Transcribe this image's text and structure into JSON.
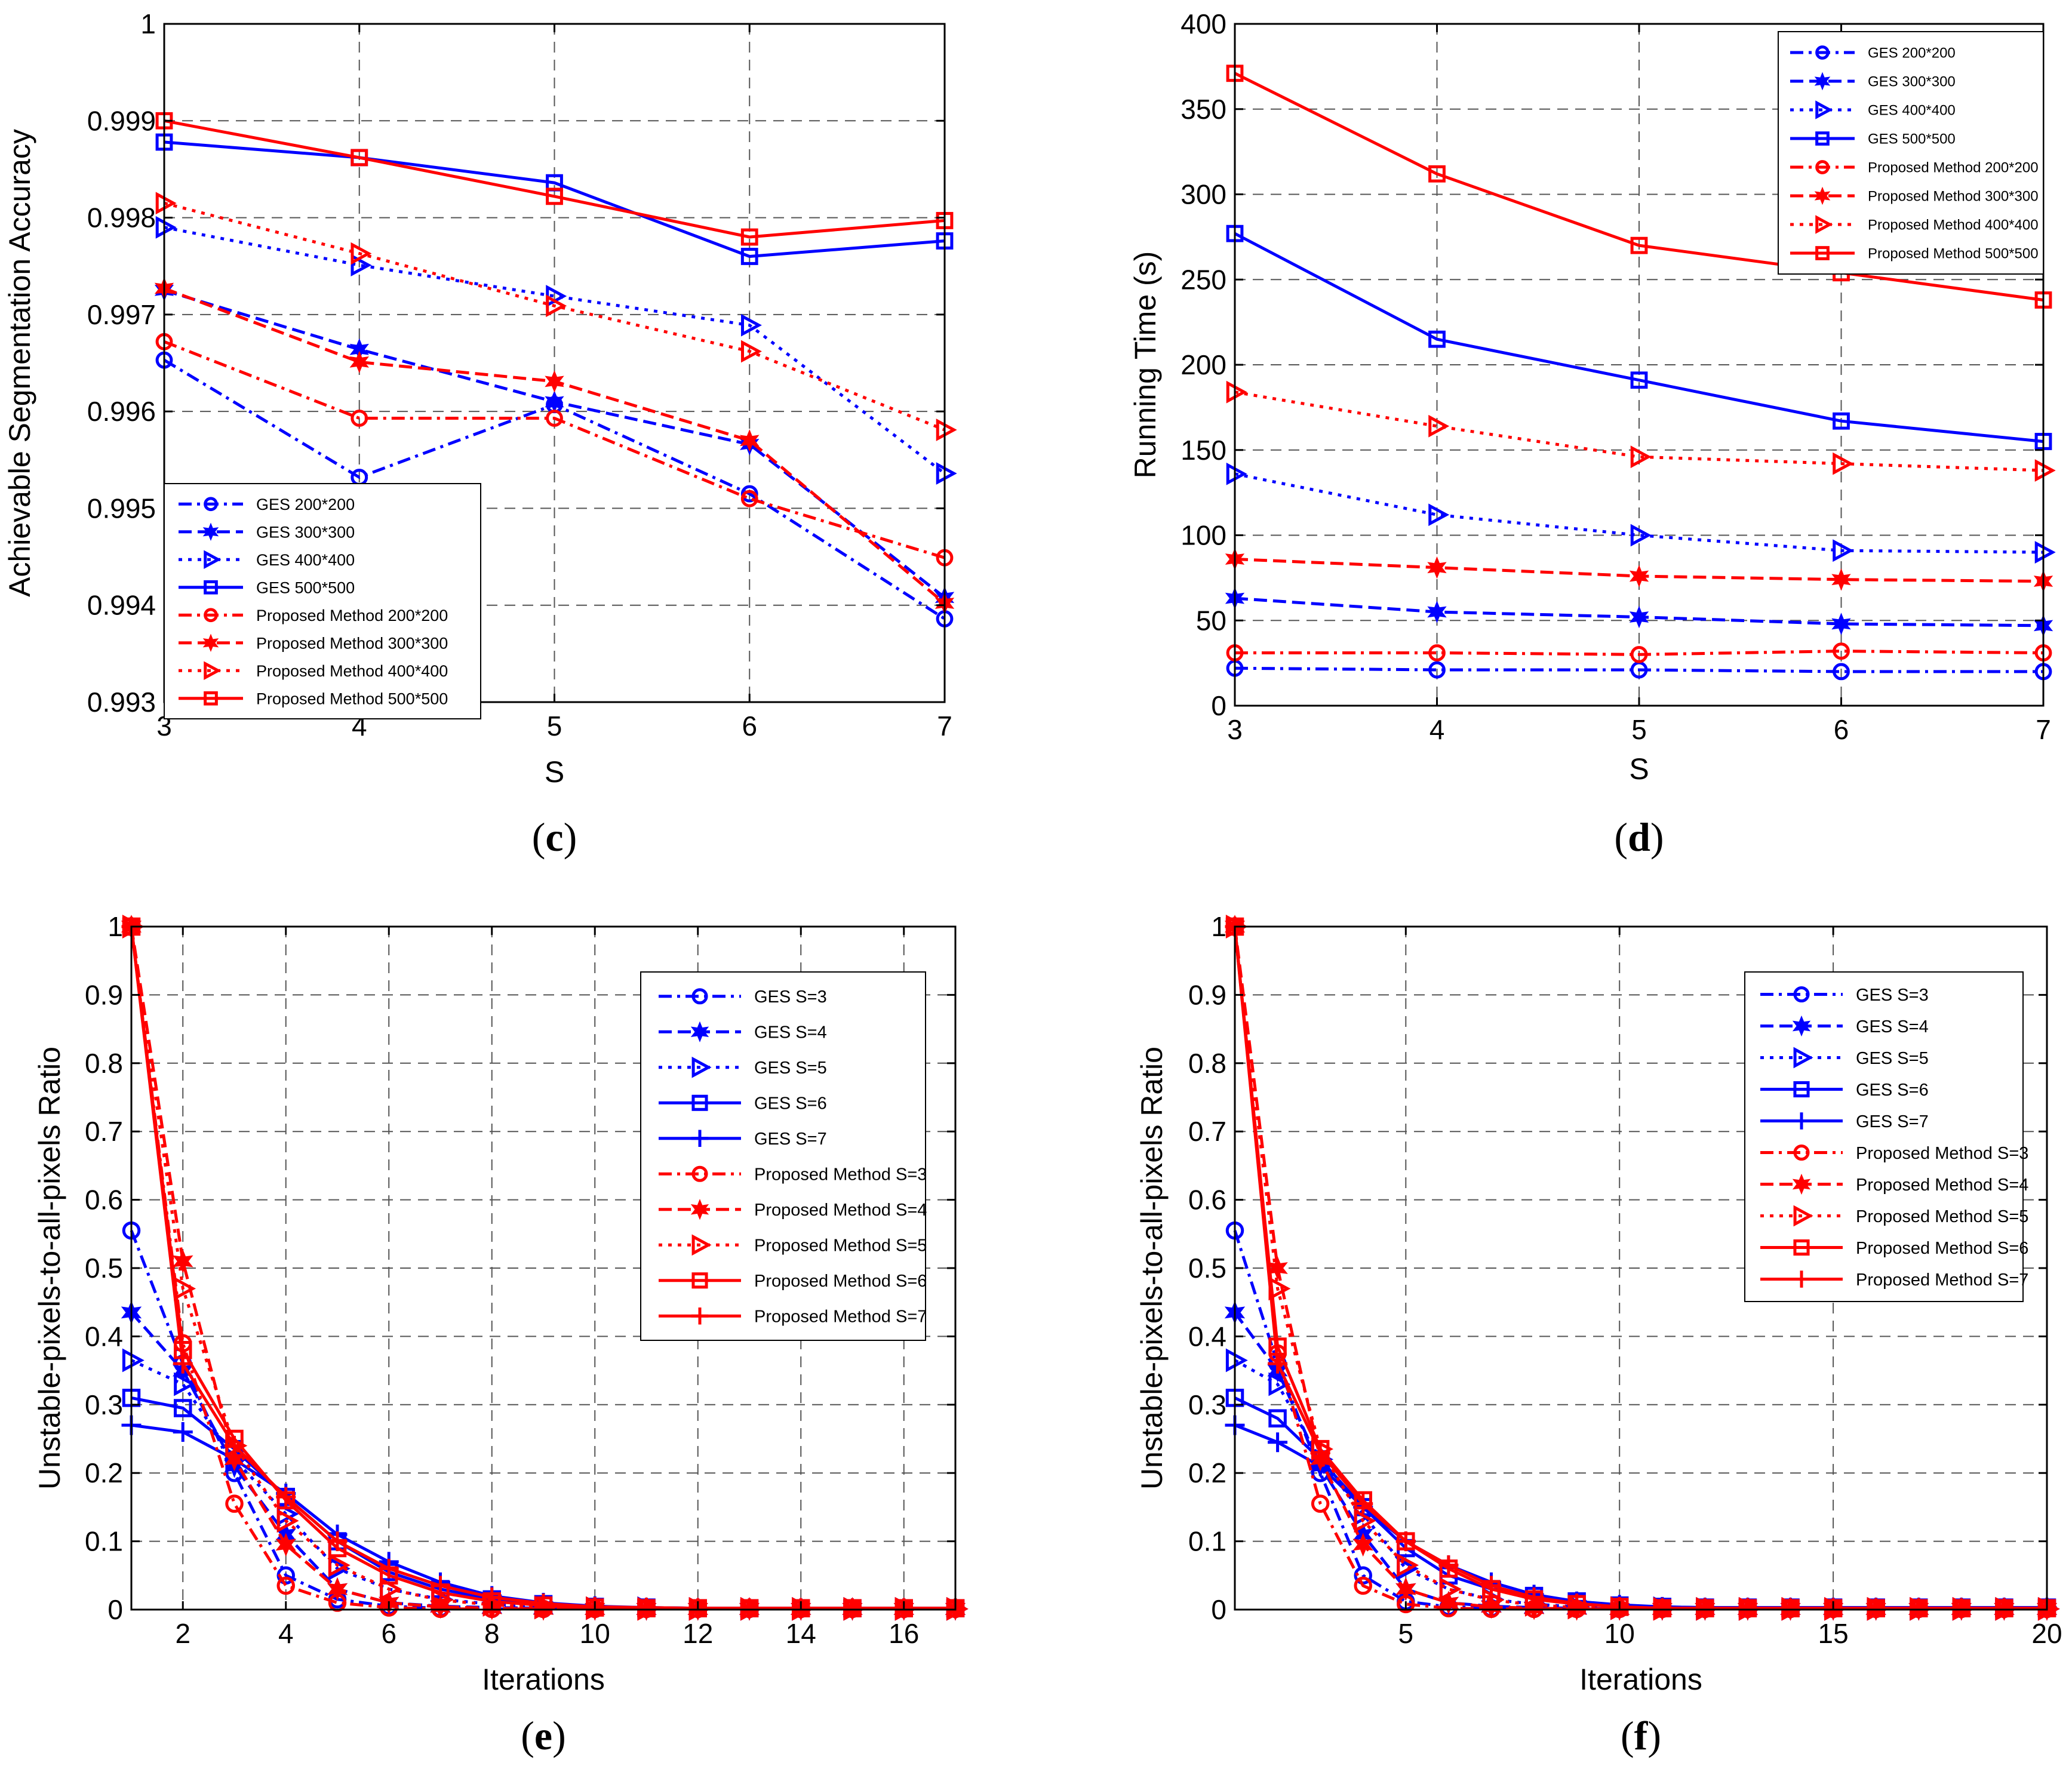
{
  "chart_data": [
    {
      "type": "line",
      "panel": "(c)",
      "panel_letter": "c",
      "xlabel": "S",
      "ylabel": "Achievable Segmentation Accuracy",
      "xlim": [
        3,
        7
      ],
      "ylim": [
        0.993,
        1
      ],
      "xticks": [
        3,
        4,
        5,
        6,
        7
      ],
      "xtick_labels": [
        "3",
        "4",
        "5",
        "6",
        "7"
      ],
      "yticks": [
        0.993,
        0.994,
        0.995,
        0.996,
        0.997,
        0.998,
        0.999,
        1
      ],
      "ytick_labels": [
        "0.993",
        "0.994",
        "0.995",
        "0.996",
        "0.997",
        "0.998",
        "0.999",
        "1"
      ],
      "grid": true,
      "legend_position": "bottom-left",
      "x": [
        3,
        4,
        5,
        6,
        7
      ],
      "series": [
        {
          "name": "GES 200*200",
          "color": "#0000ff",
          "style": "dashdot",
          "marker": "circle",
          "values": [
            0.99653,
            0.99532,
            0.99607,
            0.99515,
            0.99386
          ]
        },
        {
          "name": "GES 300*300",
          "color": "#0000ff",
          "style": "dashed",
          "marker": "star",
          "values": [
            0.99725,
            0.99664,
            0.9961,
            0.99566,
            0.99408
          ]
        },
        {
          "name": "GES 400*400",
          "color": "#0000ff",
          "style": "dotted",
          "marker": "triangle",
          "values": [
            0.9979,
            0.99751,
            0.99719,
            0.99689,
            0.99536
          ]
        },
        {
          "name": "GES 500*500",
          "color": "#0000ff",
          "style": "solid",
          "marker": "square",
          "values": [
            0.99878,
            0.99862,
            0.99836,
            0.9976,
            0.99776
          ]
        },
        {
          "name": "Proposed Method 200*200",
          "color": "#ff0000",
          "style": "dashdot",
          "marker": "circle",
          "values": [
            0.99672,
            0.99593,
            0.99593,
            0.9951,
            0.99449
          ]
        },
        {
          "name": "Proposed Method 300*300",
          "color": "#ff0000",
          "style": "dashed",
          "marker": "star",
          "values": [
            0.99727,
            0.99651,
            0.99631,
            0.9957,
            0.99402
          ]
        },
        {
          "name": "Proposed Method 400*400",
          "color": "#ff0000",
          "style": "dotted",
          "marker": "triangle",
          "values": [
            0.99815,
            0.99763,
            0.99709,
            0.99662,
            0.99581
          ]
        },
        {
          "name": "Proposed Method 500*500",
          "color": "#ff0000",
          "style": "solid",
          "marker": "square",
          "values": [
            0.999,
            0.99862,
            0.99822,
            0.9978,
            0.99797
          ]
        }
      ]
    },
    {
      "type": "line",
      "panel": "(d)",
      "panel_letter": "d",
      "xlabel": "S",
      "ylabel": "Running Time (s)",
      "xlim": [
        3,
        7
      ],
      "ylim": [
        0,
        400
      ],
      "xticks": [
        3,
        4,
        5,
        6,
        7
      ],
      "xtick_labels": [
        "3",
        "4",
        "5",
        "6",
        "7"
      ],
      "yticks": [
        0,
        50,
        100,
        150,
        200,
        250,
        300,
        350,
        400
      ],
      "ytick_labels": [
        "0",
        "50",
        "100",
        "150",
        "200",
        "250",
        "300",
        "350",
        "400"
      ],
      "grid": true,
      "legend_position": "top-right",
      "x": [
        3,
        4,
        5,
        6,
        7
      ],
      "series": [
        {
          "name": "GES 200*200",
          "color": "#0000ff",
          "style": "dashdot",
          "marker": "circle",
          "values": [
            22,
            21,
            21,
            20,
            20
          ]
        },
        {
          "name": "GES 300*300",
          "color": "#0000ff",
          "style": "dashed",
          "marker": "star",
          "values": [
            63,
            55,
            52,
            48,
            47
          ]
        },
        {
          "name": "GES 400*400",
          "color": "#0000ff",
          "style": "dotted",
          "marker": "triangle",
          "values": [
            136,
            112,
            100,
            91,
            90
          ]
        },
        {
          "name": "GES 500*500",
          "color": "#0000ff",
          "style": "solid",
          "marker": "square",
          "values": [
            277,
            215,
            191,
            167,
            155
          ]
        },
        {
          "name": "Proposed Method 200*200",
          "color": "#ff0000",
          "style": "dashdot",
          "marker": "circle",
          "values": [
            31,
            31,
            30,
            32,
            31
          ]
        },
        {
          "name": "Proposed Method 300*300",
          "color": "#ff0000",
          "style": "dashed",
          "marker": "star",
          "values": [
            86,
            81,
            76,
            74,
            73
          ]
        },
        {
          "name": "Proposed Method 400*400",
          "color": "#ff0000",
          "style": "dotted",
          "marker": "triangle",
          "values": [
            184,
            164,
            146,
            142,
            138
          ]
        },
        {
          "name": "Proposed Method 500*500",
          "color": "#ff0000",
          "style": "solid",
          "marker": "square",
          "values": [
            371,
            312,
            270,
            254,
            238
          ]
        }
      ]
    },
    {
      "type": "line",
      "panel": "(e)",
      "panel_letter": "e",
      "xlabel": "Iterations",
      "ylabel": "Unstable-pixels-to-all-pixels Ratio",
      "xlim": [
        1,
        17
      ],
      "ylim": [
        0,
        1
      ],
      "xticks": [
        2,
        4,
        6,
        8,
        10,
        12,
        14,
        16
      ],
      "xtick_labels": [
        "2",
        "4",
        "6",
        "8",
        "10",
        "12",
        "14",
        "16"
      ],
      "yticks": [
        0,
        0.1,
        0.2,
        0.3,
        0.4,
        0.5,
        0.6,
        0.7,
        0.8,
        0.9,
        1
      ],
      "ytick_labels": [
        "0",
        "0.1",
        "0.2",
        "0.3",
        "0.4",
        "0.5",
        "0.6",
        "0.7",
        "0.8",
        "0.9",
        "1"
      ],
      "grid": true,
      "legend_position": "top-right",
      "x": [
        1,
        2,
        3,
        4,
        5,
        6,
        7,
        8,
        9,
        10,
        11,
        12,
        13,
        14,
        15,
        16,
        17
      ],
      "series": [
        {
          "name": "GES S=3",
          "color": "#0000ff",
          "style": "dashdot",
          "marker": "circle",
          "values": [
            0.555,
            0.36,
            0.2,
            0.05,
            0.015,
            0.005,
            0.002,
            0.001,
            0.001,
            0.001,
            0.001,
            0.001,
            0.001,
            0.001,
            0.001,
            0.001,
            0.001
          ]
        },
        {
          "name": "GES S=4",
          "color": "#0000ff",
          "style": "dashed",
          "marker": "star",
          "values": [
            0.435,
            0.35,
            0.21,
            0.11,
            0.03,
            0.01,
            0.005,
            0.003,
            0.002,
            0.001,
            0.001,
            0.001,
            0.001,
            0.001,
            0.001,
            0.001,
            0.001
          ]
        },
        {
          "name": "GES S=5",
          "color": "#0000ff",
          "style": "dotted",
          "marker": "triangle",
          "values": [
            0.365,
            0.33,
            0.22,
            0.14,
            0.06,
            0.03,
            0.015,
            0.008,
            0.004,
            0.002,
            0.002,
            0.001,
            0.001,
            0.001,
            0.001,
            0.001,
            0.001
          ]
        },
        {
          "name": "GES S=6",
          "color": "#0000ff",
          "style": "solid",
          "marker": "square",
          "values": [
            0.31,
            0.295,
            0.235,
            0.165,
            0.1,
            0.055,
            0.03,
            0.015,
            0.008,
            0.004,
            0.003,
            0.002,
            0.002,
            0.002,
            0.002,
            0.002,
            0.002
          ]
        },
        {
          "name": "GES S=7",
          "color": "#0000ff",
          "style": "solid",
          "marker": "plus",
          "values": [
            0.27,
            0.26,
            0.22,
            0.17,
            0.11,
            0.07,
            0.04,
            0.02,
            0.01,
            0.005,
            0.003,
            0.002,
            0.002,
            0.002,
            0.002,
            0.002,
            0.002
          ]
        },
        {
          "name": "Proposed Method S=3",
          "color": "#ff0000",
          "style": "dashdot",
          "marker": "circle",
          "values": [
            1,
            0.39,
            0.155,
            0.035,
            0.01,
            0.003,
            0.001,
            0.001,
            0.001,
            0.001,
            0.001,
            0.001,
            0.001,
            0.001,
            0.001,
            0.001,
            0.001
          ]
        },
        {
          "name": "Proposed Method S=4",
          "color": "#ff0000",
          "style": "dashed",
          "marker": "star",
          "values": [
            1,
            0.51,
            0.22,
            0.095,
            0.03,
            0.01,
            0.004,
            0.002,
            0.001,
            0.001,
            0.001,
            0.001,
            0.001,
            0.001,
            0.001,
            0.001,
            0.001
          ]
        },
        {
          "name": "Proposed Method S=5",
          "color": "#ff0000",
          "style": "dotted",
          "marker": "triangle",
          "values": [
            1,
            0.47,
            0.24,
            0.13,
            0.065,
            0.03,
            0.014,
            0.007,
            0.003,
            0.002,
            0.001,
            0.001,
            0.001,
            0.001,
            0.001,
            0.001,
            0.001
          ]
        },
        {
          "name": "Proposed Method S=6",
          "color": "#ff0000",
          "style": "solid",
          "marker": "square",
          "values": [
            1,
            0.38,
            0.25,
            0.16,
            0.09,
            0.05,
            0.025,
            0.012,
            0.006,
            0.003,
            0.002,
            0.002,
            0.002,
            0.002,
            0.002,
            0.002,
            0.002
          ]
        },
        {
          "name": "Proposed Method S=7",
          "color": "#ff0000",
          "style": "solid",
          "marker": "plus",
          "values": [
            1,
            0.36,
            0.24,
            0.165,
            0.1,
            0.06,
            0.035,
            0.018,
            0.009,
            0.004,
            0.003,
            0.002,
            0.002,
            0.002,
            0.002,
            0.002,
            0.002
          ]
        }
      ]
    },
    {
      "type": "line",
      "panel": "(f)",
      "panel_letter": "f",
      "xlabel": "Iterations",
      "ylabel": "Unstable-pixels-to-all-pixels Ratio",
      "xlim": [
        1,
        20
      ],
      "ylim": [
        0,
        1
      ],
      "xticks": [
        5,
        10,
        15,
        20
      ],
      "xtick_labels": [
        "5",
        "10",
        "15",
        "20"
      ],
      "yticks": [
        0,
        0.1,
        0.2,
        0.3,
        0.4,
        0.5,
        0.6,
        0.7,
        0.8,
        0.9,
        1
      ],
      "ytick_labels": [
        "0",
        "0.1",
        "0.2",
        "0.3",
        "0.4",
        "0.5",
        "0.6",
        "0.7",
        "0.8",
        "0.9",
        "1"
      ],
      "grid": true,
      "legend_position": "top-right",
      "x": [
        1,
        2,
        3,
        4,
        5,
        6,
        7,
        8,
        9,
        10,
        11,
        12,
        13,
        14,
        15,
        16,
        17,
        18,
        19,
        20
      ],
      "series": [
        {
          "name": "GES S=3",
          "color": "#0000ff",
          "style": "dashdot",
          "marker": "circle",
          "values": [
            0.555,
            0.36,
            0.2,
            0.05,
            0.012,
            0.004,
            0.002,
            0.001,
            0.001,
            0.001,
            0.001,
            0.001,
            0.001,
            0.001,
            0.001,
            0.001,
            0.001,
            0.001,
            0.001,
            0.001
          ]
        },
        {
          "name": "GES S=4",
          "color": "#0000ff",
          "style": "dashed",
          "marker": "star",
          "values": [
            0.435,
            0.35,
            0.21,
            0.11,
            0.03,
            0.01,
            0.005,
            0.003,
            0.002,
            0.001,
            0.001,
            0.001,
            0.001,
            0.001,
            0.001,
            0.001,
            0.001,
            0.001,
            0.001,
            0.001
          ]
        },
        {
          "name": "GES S=5",
          "color": "#0000ff",
          "style": "dotted",
          "marker": "triangle",
          "values": [
            0.365,
            0.33,
            0.22,
            0.14,
            0.06,
            0.03,
            0.015,
            0.008,
            0.004,
            0.002,
            0.002,
            0.001,
            0.001,
            0.001,
            0.001,
            0.001,
            0.001,
            0.001,
            0.001,
            0.001
          ]
        },
        {
          "name": "GES S=6",
          "color": "#0000ff",
          "style": "solid",
          "marker": "square",
          "values": [
            0.31,
            0.28,
            0.22,
            0.15,
            0.09,
            0.05,
            0.03,
            0.02,
            0.012,
            0.006,
            0.004,
            0.003,
            0.003,
            0.003,
            0.003,
            0.003,
            0.003,
            0.003,
            0.003,
            0.003
          ]
        },
        {
          "name": "GES S=7",
          "color": "#0000ff",
          "style": "solid",
          "marker": "plus",
          "values": [
            0.27,
            0.245,
            0.21,
            0.15,
            0.1,
            0.065,
            0.04,
            0.022,
            0.012,
            0.007,
            0.004,
            0.003,
            0.003,
            0.003,
            0.003,
            0.003,
            0.003,
            0.003,
            0.003,
            0.003
          ]
        },
        {
          "name": "Proposed Method S=3",
          "color": "#ff0000",
          "style": "dashdot",
          "marker": "circle",
          "values": [
            1,
            0.375,
            0.155,
            0.035,
            0.008,
            0.002,
            0.001,
            0.001,
            0.001,
            0.001,
            0.001,
            0.001,
            0.001,
            0.001,
            0.001,
            0.001,
            0.001,
            0.001,
            0.001,
            0.001
          ]
        },
        {
          "name": "Proposed Method S=4",
          "color": "#ff0000",
          "style": "dashed",
          "marker": "star",
          "values": [
            1,
            0.5,
            0.22,
            0.095,
            0.03,
            0.01,
            0.004,
            0.002,
            0.001,
            0.001,
            0.001,
            0.001,
            0.001,
            0.001,
            0.001,
            0.001,
            0.001,
            0.001,
            0.001,
            0.001
          ]
        },
        {
          "name": "Proposed Method S=5",
          "color": "#ff0000",
          "style": "dotted",
          "marker": "triangle",
          "values": [
            1,
            0.47,
            0.235,
            0.13,
            0.065,
            0.03,
            0.014,
            0.007,
            0.003,
            0.002,
            0.001,
            0.001,
            0.001,
            0.001,
            0.001,
            0.001,
            0.001,
            0.001,
            0.001,
            0.001
          ]
        },
        {
          "name": "Proposed Method S=6",
          "color": "#ff0000",
          "style": "solid",
          "marker": "square",
          "values": [
            1,
            0.385,
            0.235,
            0.16,
            0.1,
            0.06,
            0.03,
            0.015,
            0.008,
            0.004,
            0.002,
            0.002,
            0.002,
            0.002,
            0.002,
            0.002,
            0.002,
            0.002,
            0.002,
            0.002
          ]
        },
        {
          "name": "Proposed Method S=7",
          "color": "#ff0000",
          "style": "solid",
          "marker": "plus",
          "values": [
            1,
            0.36,
            0.23,
            0.155,
            0.1,
            0.065,
            0.035,
            0.018,
            0.009,
            0.004,
            0.002,
            0.002,
            0.002,
            0.002,
            0.002,
            0.002,
            0.002,
            0.002,
            0.002,
            0.002
          ]
        }
      ]
    }
  ]
}
